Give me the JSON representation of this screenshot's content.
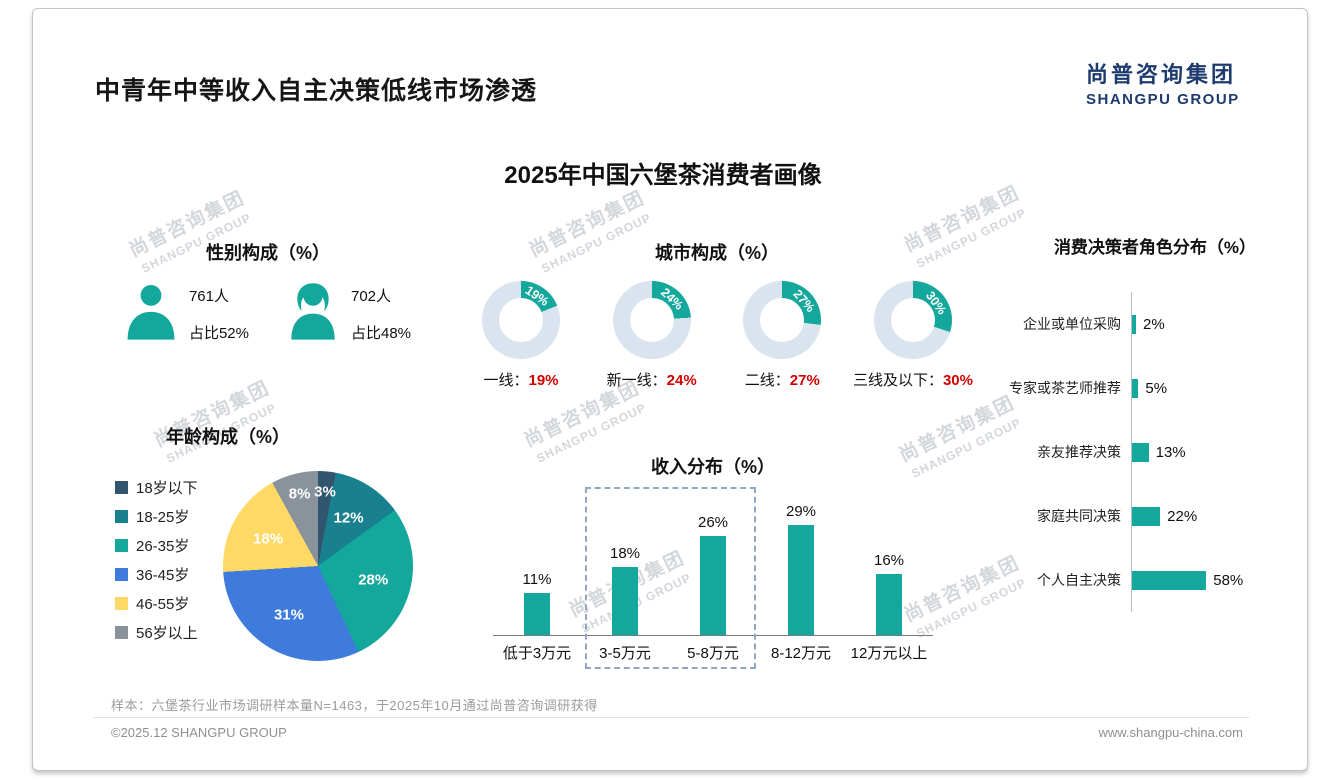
{
  "page": {
    "title": "中青年中等收入自主决策低线市场渗透",
    "subtitle": "2025年中国六堡茶消费者画像",
    "logo_cn": "尚普咨询集团",
    "logo_en": "SHANGPU GROUP",
    "watermark_cn": "尚普咨询集团",
    "watermark_en": "SHANGPU GROUP",
    "sample_note": "样本：六堡茶行业市场调研样本量N=1463，于2025年10月通过尚普咨询调研获得",
    "footer_left": "©2025.12 SHANGPU GROUP",
    "footer_right": "www.shangpu-china.com"
  },
  "colors": {
    "accent": "#14A79B",
    "donut_rest": "#D9E4EF",
    "highlight_red": "#D40000",
    "logo_blue": "#1E3B6E",
    "pie_palette": [
      "#32556E",
      "#19808F",
      "#14A79B",
      "#3E7BDC",
      "#FFD966",
      "#8A939C"
    ]
  },
  "gender": {
    "title": "性别构成（%）",
    "male_count": "761人",
    "male_share": "占比52%",
    "female_count": "702人",
    "female_share": "占比48%"
  },
  "chart_data": [
    {
      "id": "city",
      "type": "pie",
      "variant": "donut-set",
      "title": "城市构成（%）",
      "items": [
        {
          "label": "一线：",
          "value": 19
        },
        {
          "label": "新一线：",
          "value": 24
        },
        {
          "label": "二线：",
          "value": 27
        },
        {
          "label": "三线及以下：",
          "value": 30
        }
      ]
    },
    {
      "id": "age",
      "type": "pie",
      "title": "年龄构成（%）",
      "categories": [
        "18岁以下",
        "18-25岁",
        "26-35岁",
        "36-45岁",
        "46-55岁",
        "56岁以上"
      ],
      "values": [
        3,
        12,
        28,
        31,
        18,
        8
      ],
      "legend_position": "left",
      "label_format": "percent-on-slice"
    },
    {
      "id": "income",
      "type": "bar",
      "title": "收入分布（%）",
      "categories": [
        "低于3万元",
        "3-5万元",
        "5-8万元",
        "8-12万元",
        "12万元以上"
      ],
      "values": [
        11,
        18,
        26,
        29,
        16
      ],
      "ylim": [
        0,
        32
      ],
      "highlight_box": {
        "from": "3-5万元",
        "to": "5-8万元"
      }
    },
    {
      "id": "decision",
      "type": "bar",
      "orientation": "horizontal",
      "title": "消费决策者角色分布（%）",
      "categories": [
        "企业或单位采购",
        "专家或茶艺师推荐",
        "亲友推荐决策",
        "家庭共同决策",
        "个人自主决策"
      ],
      "values": [
        2,
        5,
        13,
        22,
        58
      ],
      "xlim": [
        0,
        100
      ]
    }
  ]
}
